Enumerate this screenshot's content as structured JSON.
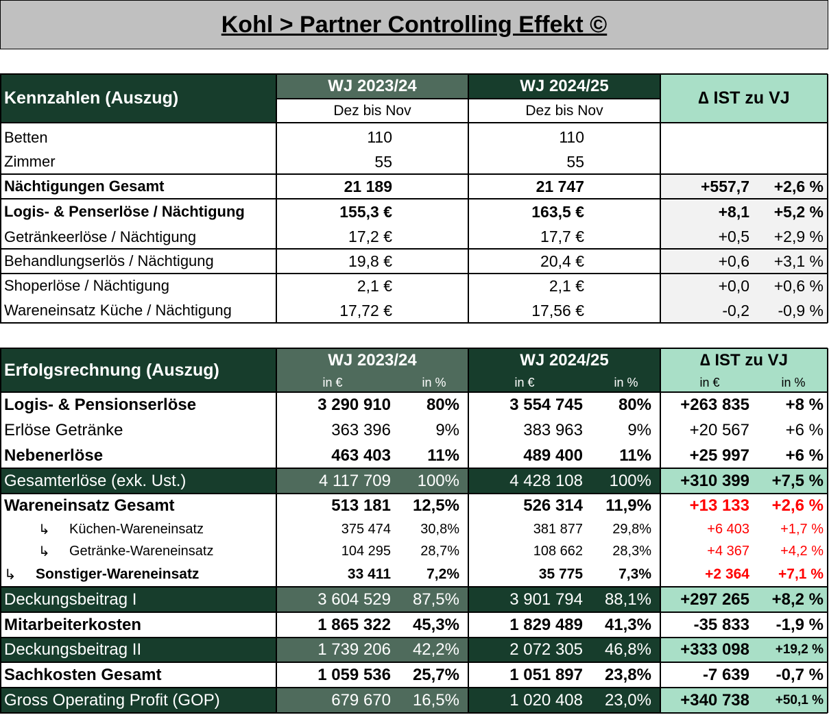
{
  "header": {
    "title": "Kohl > Partner Controlling Effekt ©"
  },
  "kennzahlen": {
    "title": "Kennzahlen (Auszug)",
    "columns": [
      "WJ 2023/24",
      "WJ 2024/25",
      "∆ IST zu VJ"
    ],
    "subheaders": [
      "Dez bis Nov",
      "Dez bis Nov"
    ],
    "rows": [
      {
        "label": "Betten",
        "values": [
          "110",
          "110"
        ]
      },
      {
        "label": "Zimmer",
        "values": [
          "55",
          "55"
        ]
      },
      {
        "label": "Nächtigungen Gesamt",
        "values": [
          "21 189",
          "21 747",
          "+557,7",
          "+2,6 %"
        ]
      },
      {
        "label": "Logis- & Penserlöse / Nächtigung",
        "values": [
          "155,3 €",
          "163,5 €",
          "+8,1",
          "+5,2 %"
        ]
      },
      {
        "label": "Getränkeerlöse / Nächtigung",
        "values": [
          "17,2 €",
          "17,7 €",
          "+0,5",
          "+2,9 %"
        ]
      },
      {
        "label": "Behandlungserlös / Nächtigung",
        "values": [
          "19,8 €",
          "20,4 €",
          "+0,6",
          "+3,1 %"
        ]
      },
      {
        "label": "Shoperlöse / Nächtigung",
        "values": [
          "2,1 €",
          "2,1 €",
          "+0,0",
          "+0,6 %"
        ]
      },
      {
        "label": "Wareneinsatz Küche / Nächtigung",
        "values": [
          "17,72 €",
          "17,56 €",
          "-0,2",
          "-0,9 %"
        ]
      }
    ]
  },
  "erfolgsrechnung": {
    "title": "Erfolgsrechnung (Auszug)",
    "columns": [
      "WJ 2023/24",
      "WJ 2024/25",
      "∆ IST zu VJ"
    ],
    "units": [
      "in €",
      "in %",
      "in €",
      "in %",
      "in €",
      "in %"
    ],
    "rows": [
      {
        "label": "Logis- & Pensionserlöse",
        "values": [
          "3 290 910",
          "80%",
          "3 554 745",
          "80%",
          "+263 835",
          "+8 %"
        ]
      },
      {
        "label": "Erlöse Getränke",
        "values": [
          "363 396",
          "9%",
          "383 963",
          "9%",
          "+20 567",
          "+6 %"
        ]
      },
      {
        "label": "Nebenerlöse",
        "values": [
          "463 403",
          "11%",
          "489 400",
          "11%",
          "+25 997",
          "+6 %"
        ]
      },
      {
        "label": "Gesamterlöse (exk. Ust.)",
        "values": [
          "4 117 709",
          "100%",
          "4 428 108",
          "100%",
          "+310 399",
          "+7,5 %"
        ]
      },
      {
        "label": "Wareneinsatz Gesamt",
        "values": [
          "513 181",
          "12,5%",
          "526 314",
          "11,9%",
          "+13 133",
          "+2,6 %"
        ]
      },
      {
        "marker": "↳",
        "label": "Küchen-Wareneinsatz",
        "values": [
          "375 474",
          "30,8%",
          "381 877",
          "29,8%",
          "+6 403",
          "+1,7 %"
        ]
      },
      {
        "marker": "↳",
        "label": "Getränke-Wareneinsatz",
        "values": [
          "104 295",
          "28,7%",
          "108 662",
          "28,3%",
          "+4 367",
          "+4,2 %"
        ]
      },
      {
        "marker": "↳",
        "label": "Sonstiger-Wareneinsatz",
        "values": [
          "33 411",
          "7,2%",
          "35 775",
          "7,3%",
          "+2 364",
          "+7,1 %"
        ]
      },
      {
        "label": "Deckungsbeitrag I",
        "values": [
          "3 604 529",
          "87,5%",
          "3 901 794",
          "88,1%",
          "+297 265",
          "+8,2 %"
        ]
      },
      {
        "label": "Mitarbeiterkosten",
        "values": [
          "1 865 322",
          "45,3%",
          "1 829 489",
          "41,3%",
          "-35 833",
          "-1,9 %"
        ]
      },
      {
        "label": "Deckungsbeitrag II",
        "values": [
          "1 739 206",
          "42,2%",
          "2 072 305",
          "46,8%",
          "+333 098",
          "+19,2 %"
        ]
      },
      {
        "label": "Sachkosten Gesamt",
        "values": [
          "1 059 536",
          "25,7%",
          "1 051 897",
          "23,8%",
          "-7 639",
          "-0,7 %"
        ]
      },
      {
        "label": "Gross Operating Profit (GOP)",
        "values": [
          "679 670",
          "16,5%",
          "1 020 408",
          "23,0%",
          "+340 738",
          "+50,1 %"
        ]
      }
    ]
  }
}
